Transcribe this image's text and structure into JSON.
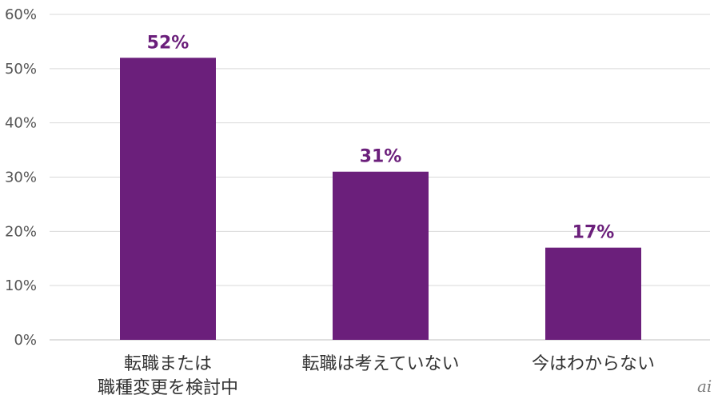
{
  "chart_data": {
    "type": "bar",
    "categories": [
      [
        "転職または",
        "職種変更を検討中"
      ],
      [
        "転職は考えていない"
      ],
      [
        "今はわからない"
      ]
    ],
    "values": [
      52,
      31,
      17
    ],
    "data_labels": [
      "52%",
      "31%",
      "17%"
    ],
    "y_ticks": [
      0,
      10,
      20,
      30,
      40,
      50,
      60
    ],
    "y_tick_labels": [
      "0%",
      "10%",
      "20%",
      "30%",
      "40%",
      "50%",
      "60%"
    ],
    "ylim": [
      0,
      60
    ],
    "grid": true,
    "colors": {
      "bar": "#6b1f7b",
      "label": "#6b1f7b"
    }
  },
  "logo": {
    "text": "ai"
  }
}
